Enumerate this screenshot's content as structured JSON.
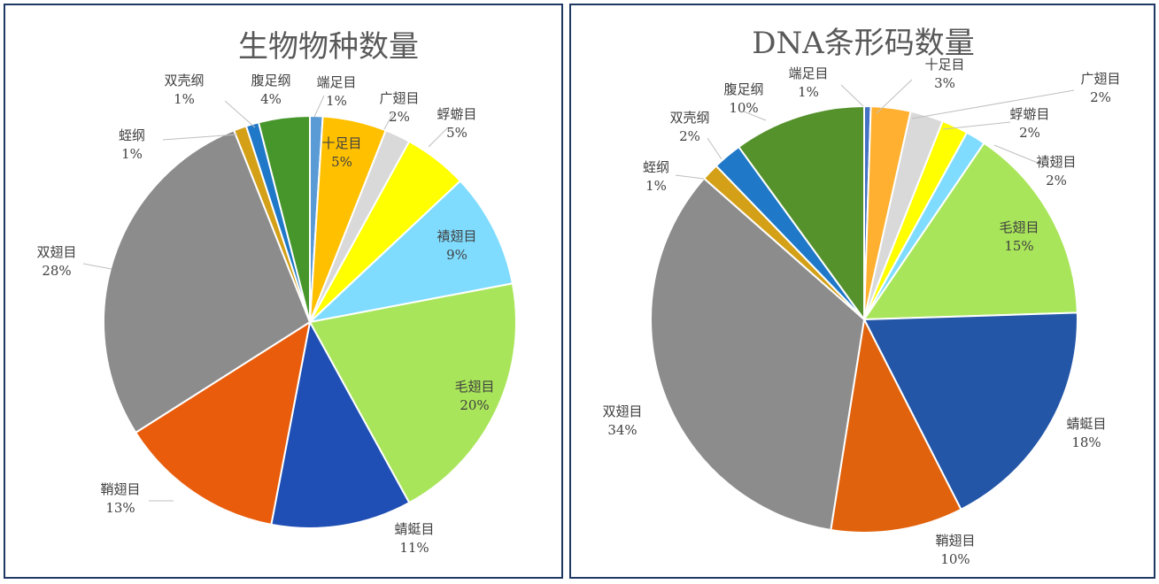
{
  "chart_data": [
    {
      "type": "pie",
      "title": "生物物种数量",
      "slices": [
        {
          "name": "端足目",
          "value": 1,
          "pct": "1%",
          "color": "#5b9bd5"
        },
        {
          "name": "十足目",
          "value": 5,
          "pct": "5%",
          "color": "#ffc000"
        },
        {
          "name": "广翅目",
          "value": 2,
          "pct": "2%",
          "color": "#d9d9d9"
        },
        {
          "name": "蜉蝣目",
          "value": 5,
          "pct": "5%",
          "color": "#ffff00"
        },
        {
          "name": "襀翅目",
          "value": 9,
          "pct": "9%",
          "color": "#7fdcff"
        },
        {
          "name": "毛翅目",
          "value": 20,
          "pct": "20%",
          "color": "#a9e55a"
        },
        {
          "name": "蜻蜓目",
          "value": 11,
          "pct": "11%",
          "color": "#1f4fb4"
        },
        {
          "name": "鞘翅目",
          "value": 13,
          "pct": "13%",
          "color": "#e85c0c"
        },
        {
          "name": "双翅目",
          "value": 28,
          "pct": "28%",
          "color": "#8c8c8c"
        },
        {
          "name": "蛭纲",
          "value": 1,
          "pct": "1%",
          "color": "#d4a017"
        },
        {
          "name": "双壳纲",
          "value": 1,
          "pct": "1%",
          "color": "#1f78c8"
        },
        {
          "name": "腹足纲",
          "value": 4,
          "pct": "4%",
          "color": "#46962b"
        }
      ]
    },
    {
      "type": "pie",
      "title": "DNA条形码数量",
      "slices": [
        {
          "name": "端足目",
          "value": 0.5,
          "pct": "1%",
          "color": "#4472c4"
        },
        {
          "name": "十足目",
          "value": 3,
          "pct": "3%",
          "color": "#ffb030"
        },
        {
          "name": "广翅目",
          "value": 2.5,
          "pct": "2%",
          "color": "#d9d9d9"
        },
        {
          "name": "蜉蝣目",
          "value": 2,
          "pct": "2%",
          "color": "#ffff00"
        },
        {
          "name": "襀翅目",
          "value": 1.5,
          "pct": "2%",
          "color": "#7fdcff"
        },
        {
          "name": "毛翅目",
          "value": 15,
          "pct": "15%",
          "color": "#a9e55a"
        },
        {
          "name": "蜻蜓目",
          "value": 18,
          "pct": "18%",
          "color": "#2456a8"
        },
        {
          "name": "鞘翅目",
          "value": 10,
          "pct": "10%",
          "color": "#e0620c"
        },
        {
          "name": "双翅目",
          "value": 34,
          "pct": "34%",
          "color": "#8c8c8c"
        },
        {
          "name": "蛭纲",
          "value": 1.3,
          "pct": "1%",
          "color": "#d4a017"
        },
        {
          "name": "双壳纲",
          "value": 2.2,
          "pct": "2%",
          "color": "#1f78c8"
        },
        {
          "name": "腹足纲",
          "value": 10,
          "pct": "10%",
          "color": "#55922b"
        }
      ]
    }
  ]
}
